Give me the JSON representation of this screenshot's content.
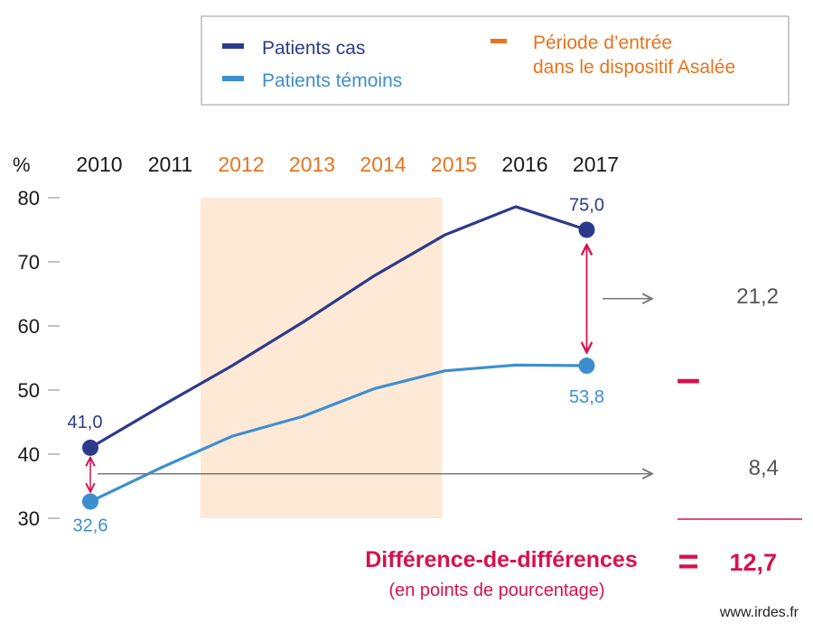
{
  "colors": {
    "cases": "#2d3a8c",
    "controls": "#3d8ed0",
    "period": "#e8731d",
    "period_fill": "#fde9d6",
    "accent": "#d6124f",
    "gray": "#7a7a7a",
    "text": "#1a1a1a"
  },
  "legend": {
    "cases_label": "Patients cas",
    "controls_label": "Patients témoins",
    "period_label_line1": "Période d’entrée",
    "period_label_line2": "dans le dispositif Asalée"
  },
  "chart_data": {
    "type": "line",
    "y_unit": "%",
    "x": [
      2010,
      2011,
      2012,
      2013,
      2014,
      2015,
      2016,
      2017
    ],
    "x_labels": [
      "2010",
      "2011",
      "2012",
      "2013",
      "2014",
      "2015",
      "2016",
      "2017"
    ],
    "highlighted_years": [
      "2012",
      "2013",
      "2014",
      "2015"
    ],
    "y_ticks": [
      "80",
      "70",
      "60",
      "50",
      "40",
      "30"
    ],
    "y_tick_values": [
      80,
      70,
      60,
      50,
      40,
      30
    ],
    "ylim": [
      30,
      80
    ],
    "shaded_period": [
      2012,
      2015
    ],
    "series": [
      {
        "name": "Patients cas",
        "values": [
          41.0,
          47.5,
          53.8,
          60.6,
          67.8,
          74.2,
          78.6,
          75.0
        ],
        "start_label": "41,0",
        "end_label": "75,0"
      },
      {
        "name": "Patients témoins",
        "values": [
          32.6,
          37.9,
          42.8,
          45.9,
          50.2,
          53.0,
          53.9,
          53.8
        ],
        "start_label": "32,6",
        "end_label": "53,8"
      }
    ],
    "gap_2017": "21,2",
    "gap_2010": "8,4",
    "operator_minus": "–",
    "operator_equals": "=",
    "dd_title": "Différence-de-différences",
    "dd_subtitle": "(en points de pourcentage)",
    "dd_value": "12,7"
  },
  "source": "www.irdes.fr"
}
